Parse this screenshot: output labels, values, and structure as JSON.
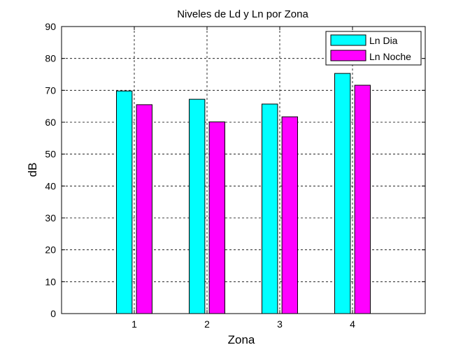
{
  "chart_data": {
    "type": "bar",
    "title": "Niveles de Ld  y Ln por Zona",
    "xlabel": "Zona",
    "ylabel": "dB",
    "categories": [
      "1",
      "2",
      "3",
      "4"
    ],
    "xlim": [
      0,
      5
    ],
    "ylim": [
      0,
      90
    ],
    "yticks": [
      0,
      10,
      20,
      30,
      40,
      50,
      60,
      70,
      80,
      90
    ],
    "grid": true,
    "legend_position": "top-right",
    "series": [
      {
        "name": "Ln Dia",
        "color": "#00FFFF",
        "values": [
          69.8,
          67.2,
          65.7,
          75.3
        ]
      },
      {
        "name": "Ln Noche",
        "color": "#FF00FF",
        "values": [
          65.5,
          60.1,
          61.7,
          71.6
        ]
      }
    ]
  }
}
